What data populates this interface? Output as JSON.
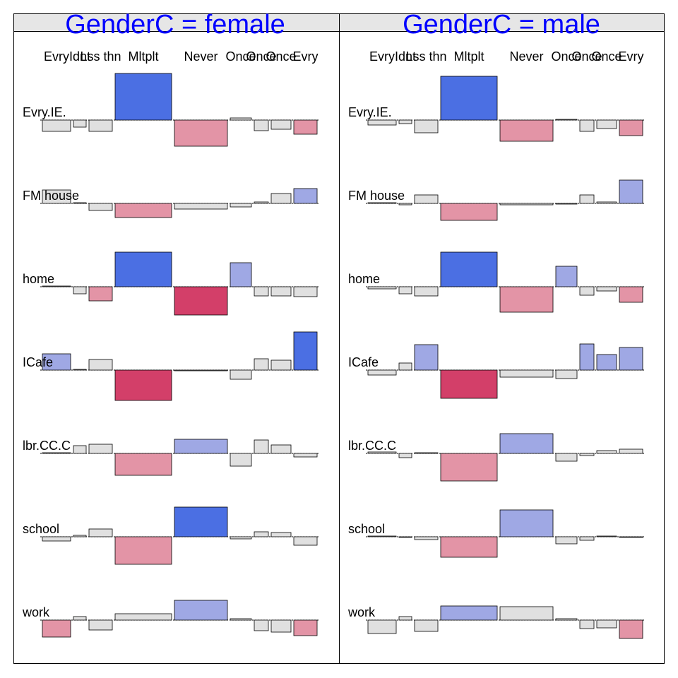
{
  "chart_data": {
    "type": "bar",
    "subtype": "mosaic-residual-panels",
    "panel_variable": "GenderC",
    "panels": [
      {
        "title": "GenderC = female",
        "value": "female"
      },
      {
        "title": "GenderC = male",
        "value": "male"
      }
    ],
    "rows": [
      "Evry.IE.",
      "FM house",
      "home",
      "ICafe",
      "lbr.CC.C",
      "school",
      "work"
    ],
    "column_groups": [
      {
        "name": "group-1",
        "columns": [
          "Evry",
          "Idnt",
          "Lss thn",
          "Mltplt"
        ]
      },
      {
        "name": "group-2",
        "columns": [
          "Never",
          "Once",
          "Once",
          "Once",
          "Evry"
        ]
      }
    ],
    "column_labels_printed": [
      "Evry",
      "Idnt",
      "Lss thn",
      "Mltplt",
      "Never",
      "Once",
      "Once",
      "Once",
      "Evry"
    ],
    "column_widths": [
      40,
      18,
      33,
      80,
      75,
      30,
      20,
      28,
      33
    ],
    "sign_convention": "positive = bar above row baseline (blue), negative = below (red)",
    "residuals": {
      "female": [
        [
          -1.6,
          -1.0,
          -1.6,
          6.6,
          -3.7,
          0.3,
          -1.5,
          -1.3,
          -2.0
        ],
        [
          1.9,
          0.1,
          -1.0,
          -2.0,
          -0.8,
          -0.5,
          0.2,
          1.4,
          2.1
        ],
        [
          0.1,
          -1.0,
          -2.0,
          4.9,
          -4.0,
          3.4,
          -1.3,
          -1.3,
          -1.4
        ],
        [
          2.3,
          0.1,
          1.5,
          -4.3,
          -0.1,
          -1.3,
          1.6,
          1.4,
          5.4
        ],
        [
          0.1,
          1.1,
          1.3,
          -3.1,
          2.0,
          -1.8,
          1.9,
          1.2,
          -0.5
        ],
        [
          -0.6,
          0.2,
          1.1,
          -3.9,
          4.2,
          -0.3,
          0.7,
          0.6,
          -1.2
        ],
        [
          -2.4,
          0.5,
          -1.4,
          0.9,
          2.8,
          0.2,
          -1.5,
          -1.7,
          -2.2
        ]
      ],
      "male": [
        [
          -0.7,
          -0.5,
          -1.8,
          6.2,
          -3.0,
          0.1,
          -1.6,
          -1.2,
          -2.2
        ],
        [
          0.1,
          -0.2,
          1.2,
          -2.4,
          -0.2,
          -0.1,
          1.2,
          0.2,
          3.3
        ],
        [
          -0.3,
          -1.0,
          -1.3,
          4.9,
          -3.6,
          2.9,
          -1.2,
          -0.6,
          -2.2
        ],
        [
          -0.7,
          1.0,
          3.6,
          -4.0,
          -1.0,
          -1.2,
          3.7,
          2.2,
          3.2
        ],
        [
          0.2,
          -0.6,
          0.1,
          -3.9,
          2.8,
          -1.1,
          -0.3,
          0.4,
          0.6
        ],
        [
          0.1,
          -0.1,
          -0.4,
          -2.9,
          3.8,
          -1.0,
          -0.5,
          0.1,
          0.0
        ],
        [
          -1.9,
          0.5,
          -1.6,
          2.0,
          1.9,
          0.2,
          -1.2,
          -1.1,
          -2.6
        ]
      ]
    },
    "fill_scale": [
      {
        "range": "r >= 4",
        "color": "#4b6fe3"
      },
      {
        "range": "2 <= r < 4",
        "color": "#9fa8e4"
      },
      {
        "range": "-2 < r < 2",
        "color": "#e0e0e0"
      },
      {
        "range": "-4 < r <= -2",
        "color": "#e394a6"
      },
      {
        "range": "r <= -4",
        "color": "#d33f69"
      }
    ],
    "value_scale_px_per_unit": 10,
    "grid": false,
    "legend": "none"
  }
}
